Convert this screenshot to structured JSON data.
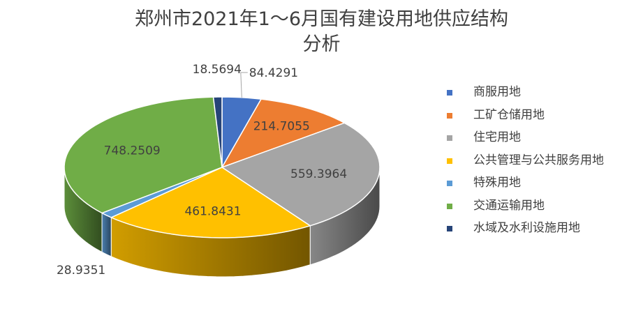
{
  "chart_data": {
    "type": "pie",
    "title_line1": "郑州市2021年1～6月国有建设用地供应结构",
    "title_line2": "分析",
    "categories": [
      "商服用地",
      "工矿仓储用地",
      "住宅用地",
      "  公共管理与公共服务用地",
      "特殊用地",
      "交通运输用地",
      "水域及水利设施用地"
    ],
    "values": [
      84.4291,
      214.7055,
      559.3964,
      461.8431,
      28.9351,
      748.2509,
      18.5694
    ],
    "labels": [
      "84.4291",
      "214.7055",
      "559.3964",
      "461.8431",
      "28.9351",
      "748.2509",
      "18.5694"
    ],
    "colors": [
      "#4472C4",
      "#ED7D31",
      "#A5A5A5",
      "#FFC000",
      "#5B9BD5",
      "#70AD47",
      "#264478"
    ],
    "legend_position": "right",
    "style": "3d"
  }
}
